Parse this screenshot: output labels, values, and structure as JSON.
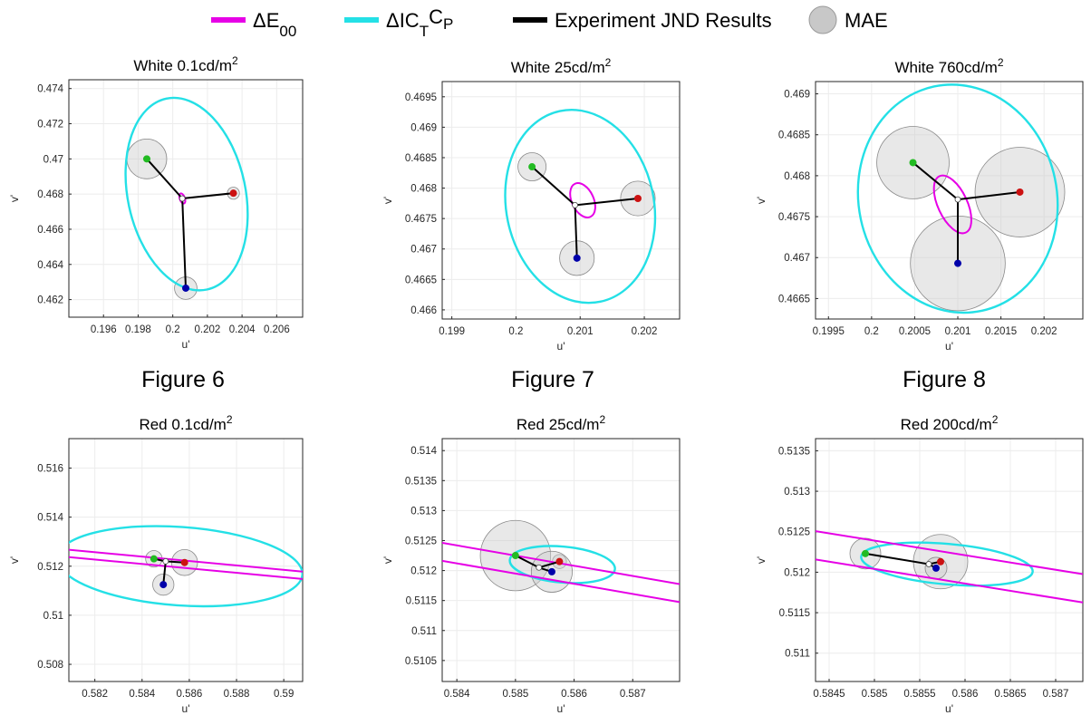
{
  "legend": {
    "items": [
      {
        "label": "ΔE",
        "sub": "00",
        "color": "#e600e6",
        "kind": "line"
      },
      {
        "label": "ΔIC",
        "sub": "T",
        "label2": "C",
        "sub2": "P",
        "color": "#24e0e6",
        "kind": "line"
      },
      {
        "label": "Experiment JND Results",
        "color": "#000000",
        "kind": "line"
      },
      {
        "label": "MAE",
        "color": "#c8c8c8",
        "kind": "disc"
      }
    ]
  },
  "captions": [
    "Figure 6",
    "Figure 7",
    "Figure 8"
  ],
  "chart_data": [
    {
      "type": "scatter",
      "title": "White 0.1cd/m",
      "title_sup": "2",
      "xlabel": "u'",
      "ylabel": "v'",
      "xlim": [
        0.194,
        0.2075
      ],
      "ylim": [
        0.461,
        0.4745
      ],
      "xticks": [
        0.196,
        0.198,
        0.2,
        0.202,
        0.204,
        0.206
      ],
      "xtick_labels": [
        "0.196",
        "0.198",
        "0.2",
        "0.202",
        "0.204",
        "0.206"
      ],
      "yticks": [
        0.462,
        0.464,
        0.466,
        0.468,
        0.47,
        0.472,
        0.474
      ],
      "ytick_labels": [
        "0.462",
        "0.464",
        "0.466",
        "0.468",
        "0.47",
        "0.472",
        "0.474"
      ],
      "center": [
        0.20055,
        0.46775
      ],
      "points": [
        {
          "name": "green",
          "x": 0.1985,
          "y": 0.47,
          "color": "#22bb22",
          "mae": 0.00115
        },
        {
          "name": "red",
          "x": 0.2035,
          "y": 0.46805,
          "color": "#cc1111",
          "mae": 0.00035
        },
        {
          "name": "blue",
          "x": 0.20075,
          "y": 0.46265,
          "color": "#0000aa",
          "mae": 0.00065
        }
      ],
      "de00": {
        "cx": 0.20055,
        "cy": 0.46775,
        "rx": 0.00015,
        "ry": 0.0003,
        "angle": 20
      },
      "ictcp": {
        "cx": 0.2008,
        "cy": 0.468,
        "rx": 0.0034,
        "ry": 0.00555,
        "angle": 12
      }
    },
    {
      "type": "scatter",
      "title": "White 25cd/m",
      "title_sup": "2",
      "xlabel": "u'",
      "ylabel": "v'",
      "xlim": [
        0.19885,
        0.20255
      ],
      "ylim": [
        0.46585,
        0.46975
      ],
      "xticks": [
        0.199,
        0.2,
        0.201,
        0.202
      ],
      "xtick_labels": [
        "0.199",
        "0.2",
        "0.201",
        "0.202"
      ],
      "yticks": [
        0.466,
        0.4665,
        0.467,
        0.4675,
        0.468,
        0.4685,
        0.469,
        0.4695
      ],
      "ytick_labels": [
        "0.466",
        "0.4665",
        "0.467",
        "0.4675",
        "0.468",
        "0.4685",
        "0.469",
        "0.4695"
      ],
      "center": [
        0.20092,
        0.46772
      ],
      "points": [
        {
          "name": "green",
          "x": 0.20025,
          "y": 0.46835,
          "color": "#22bb22",
          "mae": 0.00022
        },
        {
          "name": "red",
          "x": 0.2019,
          "y": 0.46783,
          "color": "#cc1111",
          "mae": 0.00027
        },
        {
          "name": "blue",
          "x": 0.20095,
          "y": 0.46685,
          "color": "#0000aa",
          "mae": 0.00027
        }
      ],
      "de00": {
        "cx": 0.20104,
        "cy": 0.4678,
        "rx": 0.00017,
        "ry": 0.0003,
        "angle": 25
      },
      "ictcp": {
        "cx": 0.201,
        "cy": 0.4677,
        "rx": 0.00115,
        "ry": 0.0016,
        "angle": 12
      }
    },
    {
      "type": "scatter",
      "title": "White 760cd/m",
      "title_sup": "2",
      "xlabel": "u'",
      "ylabel": "v'",
      "xlim": [
        0.19935,
        0.20245
      ],
      "ylim": [
        0.46625,
        0.46915
      ],
      "xticks": [
        0.1995,
        0.2,
        0.2005,
        0.201,
        0.2015,
        0.202
      ],
      "xtick_labels": [
        "0.1995",
        "0.2",
        "0.2005",
        "0.201",
        "0.2015",
        "0.202"
      ],
      "yticks": [
        0.4665,
        0.467,
        0.4675,
        0.468,
        0.4685,
        0.469
      ],
      "ytick_labels": [
        "0.4665",
        "0.467",
        "0.4675",
        "0.468",
        "0.4685",
        "0.469"
      ],
      "center": [
        0.201,
        0.46771
      ],
      "points": [
        {
          "name": "green",
          "x": 0.20048,
          "y": 0.46816,
          "color": "#22bb22",
          "mae": 0.00042
        },
        {
          "name": "red",
          "x": 0.20172,
          "y": 0.4678,
          "color": "#cc1111",
          "mae": 0.00052
        },
        {
          "name": "blue",
          "x": 0.201,
          "y": 0.46693,
          "color": "#0000aa",
          "mae": 0.00055
        }
      ],
      "de00": {
        "cx": 0.20094,
        "cy": 0.46765,
        "rx": 0.00017,
        "ry": 0.00038,
        "angle": 25
      },
      "ictcp": {
        "cx": 0.201,
        "cy": 0.46772,
        "rx": 0.00115,
        "ry": 0.0014,
        "angle": 12
      }
    },
    {
      "type": "scatter",
      "title": "Red 0.1cd/m",
      "title_sup": "2",
      "xlabel": "u'",
      "ylabel": "v'",
      "xlim": [
        0.5809,
        0.5908
      ],
      "ylim": [
        0.5073,
        0.5172
      ],
      "xticks": [
        0.582,
        0.584,
        0.586,
        0.588,
        0.59
      ],
      "xtick_labels": [
        "0.582",
        "0.584",
        "0.586",
        "0.588",
        "0.59"
      ],
      "yticks": [
        0.508,
        0.51,
        0.512,
        0.514,
        0.516
      ],
      "ytick_labels": [
        "0.508",
        "0.51",
        "0.512",
        "0.514",
        "0.516"
      ],
      "center": [
        0.585,
        0.5122
      ],
      "points": [
        {
          "name": "green",
          "x": 0.5845,
          "y": 0.5123,
          "color": "#22bb22",
          "mae": 0.00035
        },
        {
          "name": "red",
          "x": 0.5858,
          "y": 0.51215,
          "color": "#cc1111",
          "mae": 0.00055
        },
        {
          "name": "blue",
          "x": 0.5849,
          "y": 0.51125,
          "color": "#0000aa",
          "mae": 0.00045
        }
      ],
      "de00_band": {
        "slope": -0.09,
        "x0": 0.585,
        "y_upper": 0.5123,
        "y_lower": 0.512
      },
      "ictcp": {
        "cx": 0.5856,
        "cy": 0.512,
        "rx": 0.0052,
        "ry": 0.0016,
        "angle": -4
      }
    },
    {
      "type": "scatter",
      "title": "Red 25cd/m",
      "title_sup": "2",
      "xlabel": "u'",
      "ylabel": "v'",
      "xlim": [
        0.58375,
        0.5878
      ],
      "ylim": [
        0.51015,
        0.5142
      ],
      "xticks": [
        0.584,
        0.585,
        0.586,
        0.587
      ],
      "xtick_labels": [
        "0.584",
        "0.585",
        "0.586",
        "0.587"
      ],
      "yticks": [
        0.5105,
        0.511,
        0.5115,
        0.512,
        0.5125,
        0.513,
        0.5135,
        0.514
      ],
      "ytick_labels": [
        "0.5105",
        "0.511",
        "0.5115",
        "0.512",
        "0.5125",
        "0.513",
        "0.5135",
        "0.514"
      ],
      "center": [
        0.5854,
        0.51205
      ],
      "points": [
        {
          "name": "green",
          "x": 0.585,
          "y": 0.51225,
          "color": "#22bb22",
          "mae": 0.0006
        },
        {
          "name": "red",
          "x": 0.58575,
          "y": 0.51215,
          "color": "#cc1111",
          "mae": 0.00012
        },
        {
          "name": "blue",
          "x": 0.58562,
          "y": 0.51198,
          "color": "#0000aa",
          "mae": 0.00035
        }
      ],
      "de00_band": {
        "slope": -0.17,
        "x0": 0.585,
        "y_upper": 0.51225,
        "y_lower": 0.51195
      },
      "ictcp": {
        "cx": 0.5858,
        "cy": 0.5121,
        "rx": 0.0009,
        "ry": 0.0003,
        "angle": -5
      }
    },
    {
      "type": "scatter",
      "title": "Red 200cd/m",
      "title_sup": "2",
      "xlabel": "u'",
      "ylabel": "v'",
      "xlim": [
        0.58435,
        0.5873
      ],
      "ylim": [
        0.51065,
        0.51365
      ],
      "xticks": [
        0.5845,
        0.585,
        0.5855,
        0.586,
        0.5865,
        0.587
      ],
      "xtick_labels": [
        "0.5845",
        "0.585",
        "0.5855",
        "0.586",
        "0.5865",
        "0.587"
      ],
      "yticks": [
        0.511,
        0.5115,
        0.512,
        0.5125,
        0.513,
        0.5135
      ],
      "ytick_labels": [
        "0.511",
        "0.5115",
        "0.512",
        "0.5125",
        "0.513",
        "0.5135"
      ],
      "center": [
        0.5856,
        0.5121
      ],
      "points": [
        {
          "name": "green",
          "x": 0.5849,
          "y": 0.51223,
          "color": "#22bb22",
          "mae": 0.00017
        },
        {
          "name": "red",
          "x": 0.58573,
          "y": 0.51213,
          "color": "#cc1111",
          "mae": 0.0003
        },
        {
          "name": "blue",
          "x": 0.58568,
          "y": 0.51205,
          "color": "#0000aa",
          "mae": 0.00012
        }
      ],
      "de00_band": {
        "slope": -0.18,
        "x0": 0.5855,
        "y_upper": 0.5123,
        "y_lower": 0.51195
      },
      "ictcp": {
        "cx": 0.5858,
        "cy": 0.5121,
        "rx": 0.00095,
        "ry": 0.00025,
        "angle": -5
      }
    }
  ]
}
